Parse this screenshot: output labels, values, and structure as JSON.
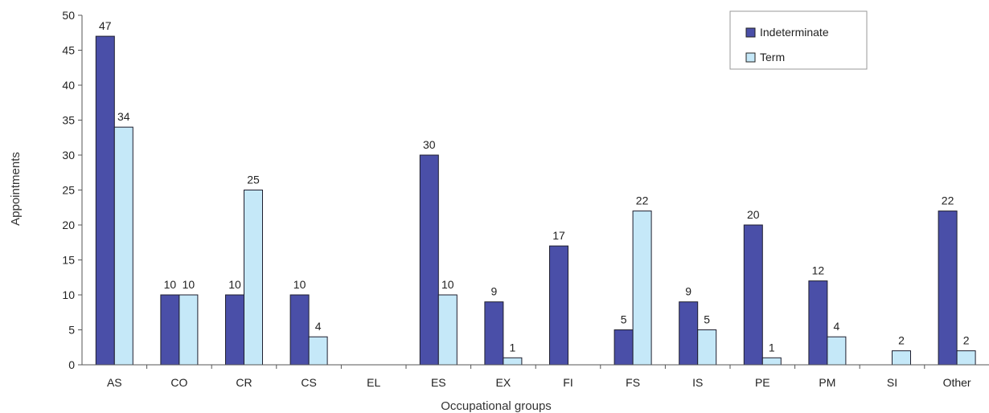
{
  "chart_data": {
    "type": "bar",
    "xlabel": "Occupational groups",
    "ylabel": "Appointments",
    "ylim": [
      0,
      50
    ],
    "yticks": [
      0,
      5,
      10,
      15,
      20,
      25,
      30,
      35,
      40,
      45,
      50
    ],
    "grid": false,
    "legend_position": "top-right",
    "categories": [
      "AS",
      "CO",
      "CR",
      "CS",
      "EL",
      "ES",
      "EX",
      "FI",
      "FS",
      "IS",
      "PE",
      "PM",
      "SI",
      "Other"
    ],
    "series": [
      {
        "name": "Indeterminate",
        "color": "#4a4fa8",
        "values": [
          47,
          10,
          10,
          10,
          null,
          30,
          9,
          17,
          5,
          9,
          20,
          12,
          null,
          22
        ],
        "labels": [
          "47",
          "10",
          "10",
          "10",
          "",
          "30",
          "9",
          "17",
          "5",
          "9",
          "20",
          "12",
          "",
          "22"
        ]
      },
      {
        "name": "Term",
        "color": "#c5e8f8",
        "values": [
          34,
          10,
          25,
          4,
          null,
          10,
          1,
          null,
          22,
          5,
          1,
          4,
          2,
          2
        ],
        "labels": [
          "34",
          "10",
          "25",
          "4",
          "",
          "10",
          "1",
          "",
          "22",
          "5",
          "1",
          "4",
          "2",
          "2"
        ]
      }
    ]
  }
}
